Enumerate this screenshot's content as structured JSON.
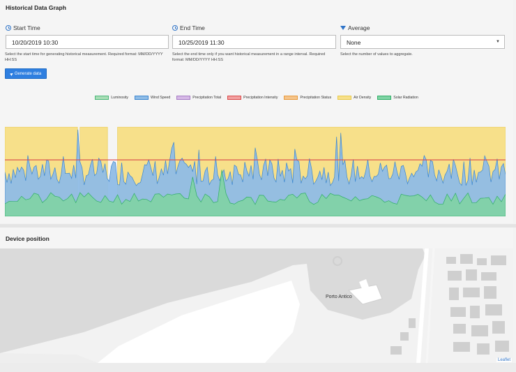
{
  "header": {
    "title": "Historical Data Graph"
  },
  "start_time": {
    "label": "Start Time",
    "value": "10/20/2019 10:30",
    "help": "Select the start time for generating historical measurement. Required format: MM/DD/YYYY HH:SS"
  },
  "end_time": {
    "label": "End Time",
    "value": "10/25/2019 11:30",
    "help": "Select the end time only if you want historical measurement in a range interval. Required format: MM/DD/YYYY HH:SS"
  },
  "average": {
    "label": "Average",
    "value": "None",
    "help": "Select the number of values to aggregate."
  },
  "generate_button": {
    "label": "Generate data"
  },
  "legend": [
    {
      "name": "Luminosity",
      "fill": "#a8ddb5",
      "stroke": "#4bb77a"
    },
    {
      "name": "Wind Speed",
      "fill": "#8fbce6",
      "stroke": "#3b86d0"
    },
    {
      "name": "Precipitation Total",
      "fill": "#d6b8e6",
      "stroke": "#a67cc4"
    },
    {
      "name": "Precipitation Intensity",
      "fill": "#f2a0a0",
      "stroke": "#d94a4a"
    },
    {
      "name": "Precipitation Status",
      "fill": "#f5c48a",
      "stroke": "#e89a3c"
    },
    {
      "name": "Air Density",
      "fill": "#f7e08a",
      "stroke": "#e8c94a"
    },
    {
      "name": "Solar Radiation",
      "fill": "#7fd3a4",
      "stroke": "#2fae66"
    }
  ],
  "chart_data": {
    "type": "area",
    "series": [
      {
        "name": "Air Density",
        "level": 0.9,
        "gaps": [
          [
            0.145,
            0.15
          ],
          [
            0.205,
            0.225
          ]
        ]
      },
      {
        "name": "Precipitation Intensity",
        "level": 0.57
      },
      {
        "name": "Wind Speed",
        "approx_level": 0.45
      },
      {
        "name": "Solar Radiation",
        "approx_level": 0.18
      }
    ],
    "grid": false,
    "legend_position": "top"
  },
  "device_section": {
    "title": "Device position"
  },
  "map": {
    "place_label": "Porto Antico",
    "attribution": "Leaflet"
  }
}
